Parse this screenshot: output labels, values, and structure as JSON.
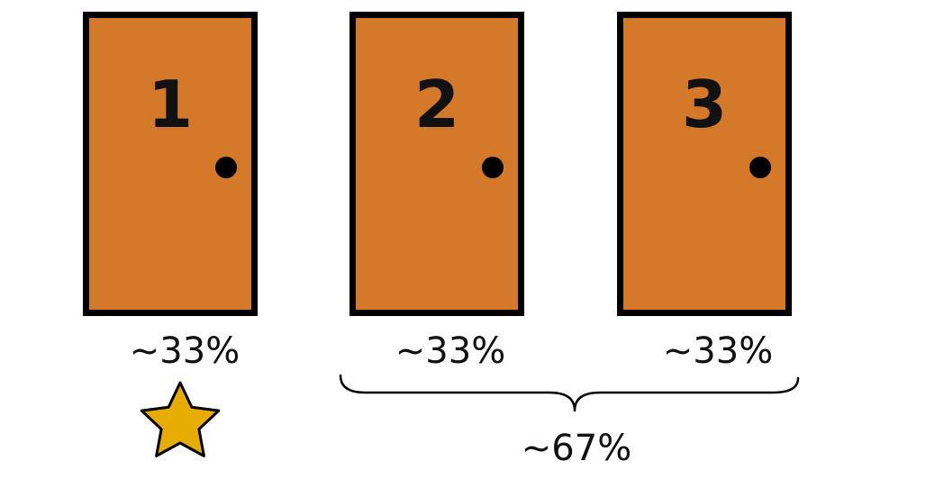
{
  "doors": [
    {
      "number": "1",
      "probability": "~33%"
    },
    {
      "number": "2",
      "probability": "~33%"
    },
    {
      "number": "3",
      "probability": "~33%"
    }
  ],
  "group": {
    "probability": "~67%"
  },
  "colors": {
    "door_fill": "#d4782a",
    "door_border": "#000000",
    "star_fill": "#e6ac00",
    "star_stroke": "#000000"
  }
}
